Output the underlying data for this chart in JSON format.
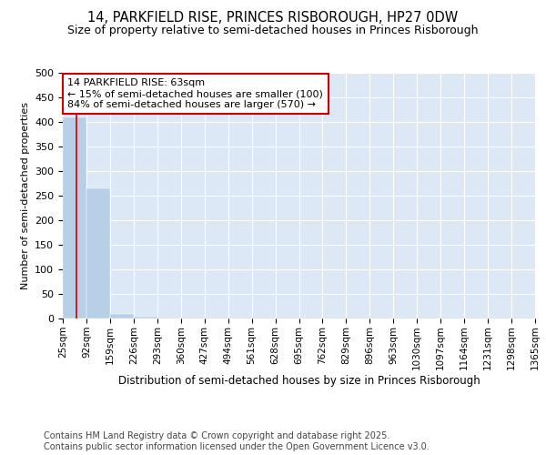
{
  "title": "14, PARKFIELD RISE, PRINCES RISBOROUGH, HP27 0DW",
  "subtitle": "Size of property relative to semi-detached houses in Princes Risborough",
  "xlabel": "Distribution of semi-detached houses by size in Princes Risborough",
  "ylabel": "Number of semi-detached properties",
  "bins": [
    25,
    92,
    159,
    226,
    293,
    360,
    427,
    494,
    561,
    628,
    695,
    762,
    829,
    896,
    963,
    1030,
    1097,
    1164,
    1231,
    1298,
    1365
  ],
  "bar_heights": [
    410,
    265,
    10,
    3,
    2,
    2,
    1,
    1,
    1,
    1,
    1,
    1,
    1,
    1,
    1,
    1,
    1,
    1,
    1,
    2
  ],
  "bar_color": "#b8cfe8",
  "property_size": 63,
  "property_line_color": "#cc0000",
  "annotation_line1": "14 PARKFIELD RISE: 63sqm",
  "annotation_line2": "← 15% of semi-detached houses are smaller (100)",
  "annotation_line3": "84% of semi-detached houses are larger (570) →",
  "annotation_box_color": "#ffffff",
  "annotation_box_edge": "#cc0000",
  "ylim": [
    0,
    500
  ],
  "yticks": [
    0,
    50,
    100,
    150,
    200,
    250,
    300,
    350,
    400,
    450,
    500
  ],
  "background_color": "#dce8f5",
  "footer_line1": "Contains HM Land Registry data © Crown copyright and database right 2025.",
  "footer_line2": "Contains public sector information licensed under the Open Government Licence v3.0.",
  "title_fontsize": 10.5,
  "subtitle_fontsize": 9,
  "xlabel_fontsize": 8.5,
  "ylabel_fontsize": 8,
  "tick_fontsize": 7.5,
  "annotation_fontsize": 8,
  "footer_fontsize": 7
}
